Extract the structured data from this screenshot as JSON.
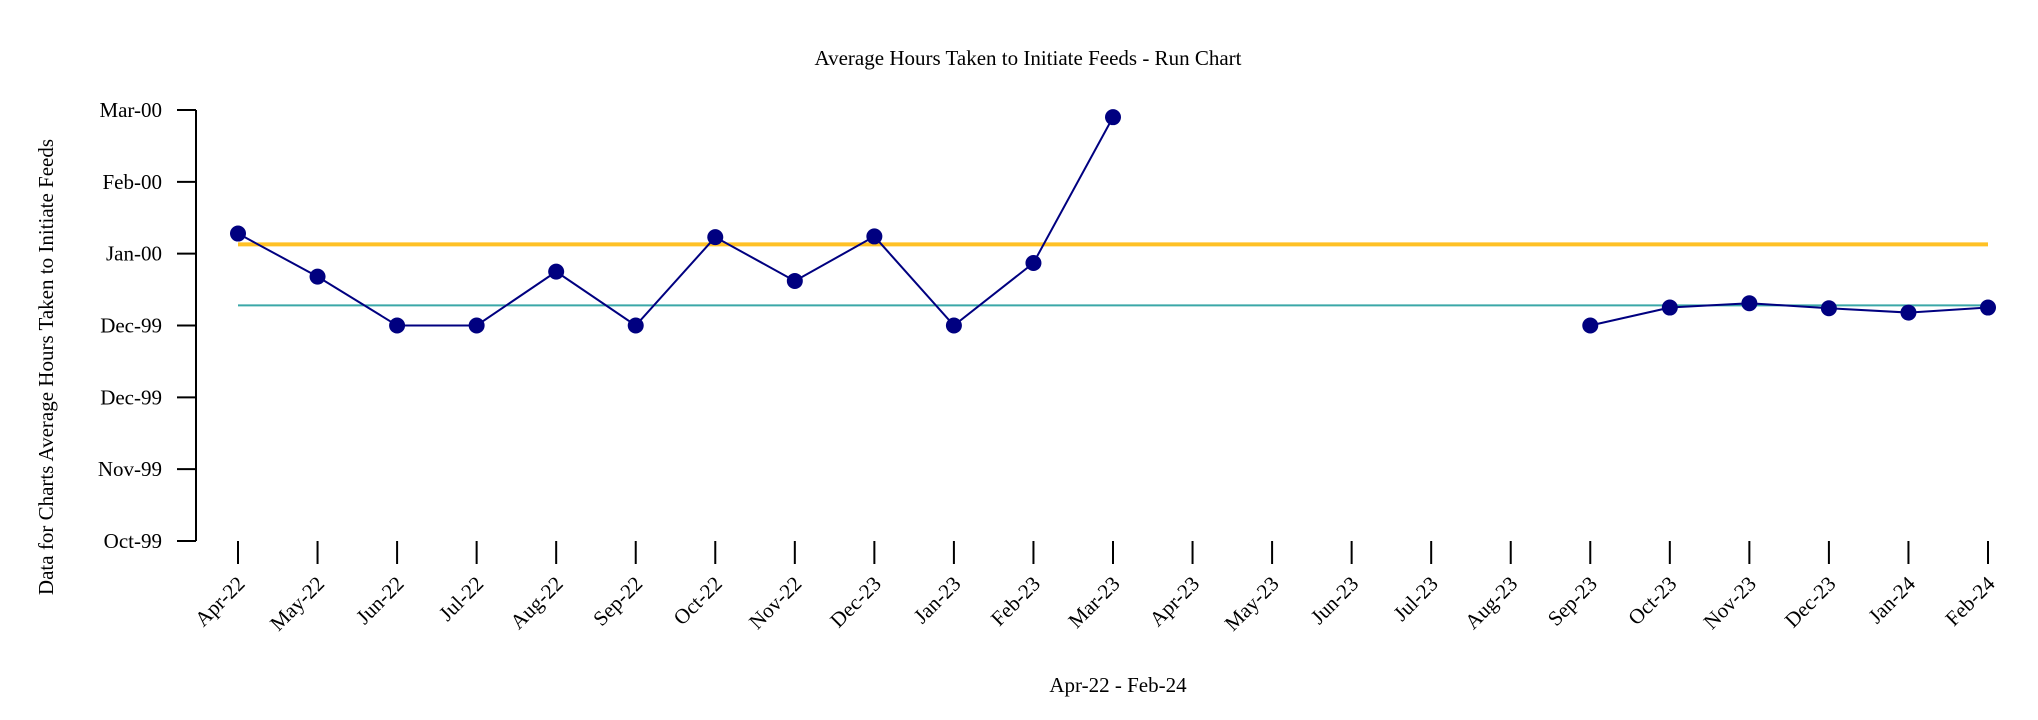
{
  "chart_data": {
    "type": "line",
    "title": "Average Hours Taken to Initiate Feeds - Run Chart",
    "xlabel": "Apr-22 - Feb-24",
    "ylabel": "Data for Charts Average Hours Taken to Initiate Feeds",
    "categories": [
      "Apr-22",
      "May-22",
      "Jun-22",
      "Jul-22",
      "Aug-22",
      "Sep-22",
      "Oct-22",
      "Nov-22",
      "Dec-23",
      "Jan-23",
      "Feb-23",
      "Mar-23",
      "Apr-23",
      "May-23",
      "Jun-23",
      "Jul-23",
      "Aug-23",
      "Sep-23",
      "Oct-23",
      "Nov-23",
      "Dec-23",
      "Jan-24",
      "Feb-24"
    ],
    "y_ticks": [
      "Oct-99",
      "Nov-99",
      "Dec-99",
      "Dec-99",
      "Jan-00",
      "Feb-00",
      "Mar-00"
    ],
    "ylim": [
      0,
      6
    ],
    "series": [
      {
        "color": "#000080",
        "values": [
          4.28,
          3.68,
          3.0,
          3.0,
          3.75,
          3.0,
          4.23,
          3.62,
          4.24,
          3.0,
          3.87,
          5.9,
          null,
          null,
          null,
          null,
          null,
          3.0,
          3.25,
          3.31,
          3.24,
          3.18,
          3.25
        ]
      }
    ],
    "reference_lines": [
      {
        "value": 4.13,
        "color": "#FFC125"
      },
      {
        "value": 3.28,
        "color": "#3AA8A8"
      }
    ],
    "grid": false
  }
}
